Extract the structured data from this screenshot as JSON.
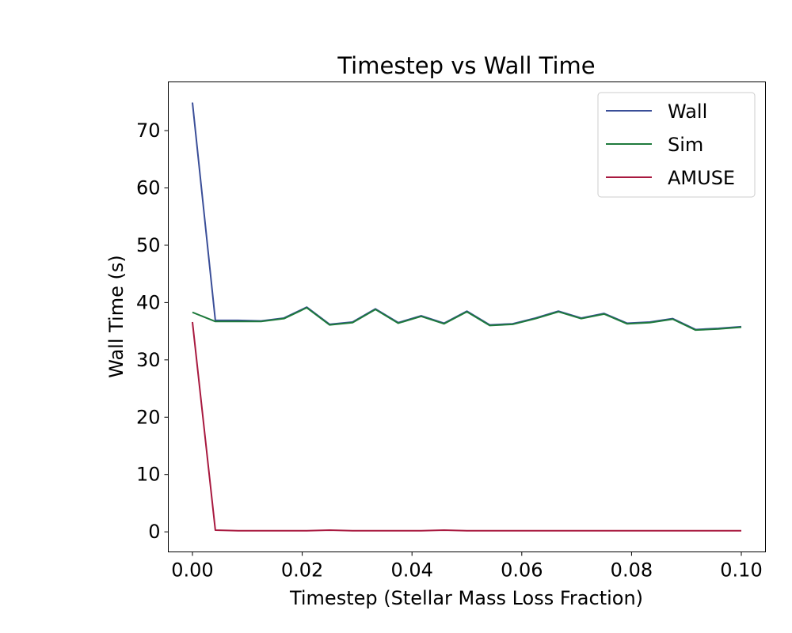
{
  "chart_data": {
    "type": "line",
    "title": "Timestep vs Wall Time",
    "xlabel": "Timestep (Stellar Mass Loss Fraction)",
    "ylabel": "Wall Time (s)",
    "xlim": [
      -0.0044,
      0.1044
    ],
    "ylim": [
      -3.5,
      78.5
    ],
    "xticks": [
      0.0,
      0.02,
      0.04,
      0.06,
      0.08,
      0.1
    ],
    "xtick_labels": [
      "0.00",
      "0.02",
      "0.04",
      "0.06",
      "0.08",
      "0.10"
    ],
    "yticks": [
      0,
      10,
      20,
      30,
      40,
      50,
      60,
      70
    ],
    "ytick_labels": [
      "0",
      "10",
      "20",
      "30",
      "40",
      "50",
      "60",
      "70"
    ],
    "grid": false,
    "legend_position": "top-right",
    "x": [
      0.0,
      0.00417,
      0.00833,
      0.0125,
      0.01667,
      0.02083,
      0.025,
      0.02917,
      0.03333,
      0.0375,
      0.04167,
      0.04583,
      0.05,
      0.05417,
      0.05833,
      0.0625,
      0.06667,
      0.07083,
      0.075,
      0.07917,
      0.08333,
      0.0875,
      0.09167,
      0.09583,
      0.1
    ],
    "series": [
      {
        "name": "Wall",
        "color": "#3a4e98",
        "values": [
          74.9,
          36.9,
          36.9,
          36.8,
          37.3,
          39.2,
          36.2,
          36.6,
          38.9,
          36.5,
          37.7,
          36.4,
          38.5,
          36.1,
          36.3,
          37.3,
          38.5,
          37.3,
          38.1,
          36.4,
          36.6,
          37.2,
          35.3,
          35.5,
          35.8
        ]
      },
      {
        "name": "Sim",
        "color": "#1e7a3c",
        "values": [
          38.3,
          36.7,
          36.7,
          36.7,
          37.2,
          39.1,
          36.1,
          36.5,
          38.8,
          36.4,
          37.6,
          36.3,
          38.4,
          36.0,
          36.2,
          37.2,
          38.4,
          37.2,
          38.0,
          36.3,
          36.5,
          37.1,
          35.2,
          35.4,
          35.7
        ]
      },
      {
        "name": "AMUSE",
        "color": "#a8193f",
        "values": [
          36.6,
          0.3,
          0.2,
          0.2,
          0.2,
          0.2,
          0.3,
          0.2,
          0.2,
          0.2,
          0.2,
          0.3,
          0.2,
          0.2,
          0.2,
          0.2,
          0.2,
          0.2,
          0.2,
          0.2,
          0.2,
          0.2,
          0.2,
          0.2,
          0.2
        ]
      }
    ]
  }
}
